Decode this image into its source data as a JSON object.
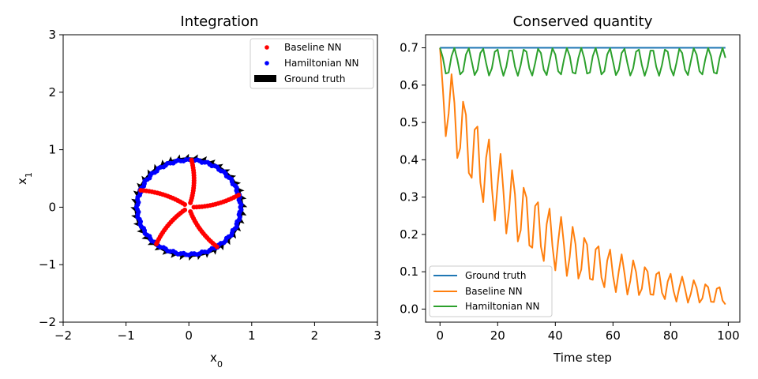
{
  "chart_data": [
    {
      "type": "scatter",
      "title": "Integration",
      "xlabel": "x",
      "xlabel_sub": "0",
      "ylabel": "x",
      "ylabel_sub": "1",
      "xlim": [
        -2,
        3
      ],
      "ylim": [
        -2,
        3
      ],
      "xticks": [
        -2,
        -1,
        0,
        1,
        2,
        3
      ],
      "yticks": [
        -2,
        -1,
        0,
        1,
        2,
        3
      ],
      "xtick_labels": [
        "−2",
        "−1",
        "0",
        "1",
        "2",
        "3"
      ],
      "ytick_labels": [
        "−2",
        "−1",
        "0",
        "1",
        "2",
        "3"
      ],
      "legend_position": "top-right",
      "legend": [
        {
          "label": "Baseline NN",
          "marker": "dot",
          "color": "#ff0000"
        },
        {
          "label": "Hamiltonian NN",
          "marker": "dot",
          "color": "#0000ff"
        },
        {
          "label": "Ground truth",
          "marker": "arrow",
          "color": "#000000"
        }
      ],
      "ground_truth": {
        "shape": "circle",
        "center": [
          0,
          0
        ],
        "radius": 0.84
      },
      "hamiltonian": {
        "shape": "circle",
        "center": [
          0,
          0
        ],
        "radius": 0.82,
        "points": 120
      },
      "baseline_arms": [
        {
          "angle_start": 87,
          "angle_end": 72
        },
        {
          "angle_start": 159,
          "angle_end": 144
        },
        {
          "angle_start": 231,
          "angle_end": 216
        },
        {
          "angle_start": 303,
          "angle_end": 288
        },
        {
          "angle_start": 15,
          "angle_end": 0
        }
      ],
      "baseline_radius_start": 0.82,
      "baseline_radius_end": 0.08,
      "colors": {
        "baseline": "#ff0000",
        "hamiltonian": "#0000ff",
        "ground_truth": "#000000"
      }
    },
    {
      "type": "line",
      "title": "Conserved quantity",
      "xlabel": "Time step",
      "ylabel": "",
      "xlim": [
        -5,
        104
      ],
      "ylim": [
        -0.035,
        0.735
      ],
      "xticks": [
        0,
        20,
        40,
        60,
        80,
        100
      ],
      "yticks": [
        0.0,
        0.1,
        0.2,
        0.3,
        0.4,
        0.5,
        0.6,
        0.7
      ],
      "xtick_labels": [
        "0",
        "20",
        "40",
        "60",
        "80",
        "100"
      ],
      "ytick_labels": [
        "0.0",
        "0.1",
        "0.2",
        "0.3",
        "0.4",
        "0.5",
        "0.6",
        "0.7"
      ],
      "legend_position": "bottom-left",
      "series": [
        {
          "name": "Ground truth",
          "color": "#1f77b4",
          "form": "constant",
          "value": 0.7,
          "x_start": 0,
          "x_end": 99
        },
        {
          "name": "Baseline NN",
          "color": "#ff7f0e",
          "form": "decaying-oscillation",
          "peak": 0.7,
          "trough": 0.5,
          "period": 4.2,
          "x_start": 0,
          "x_end": 99,
          "end_peak": 0.06,
          "end_trough": 0.01
        },
        {
          "name": "Hamiltonian NN",
          "color": "#2ca02c",
          "form": "oscillation",
          "max": 0.7,
          "min": 0.625,
          "period": 4.9,
          "x_start": 0,
          "x_end": 99
        }
      ]
    }
  ]
}
